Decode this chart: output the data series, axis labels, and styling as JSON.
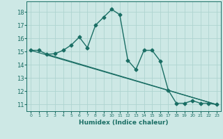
{
  "xlabel": "Humidex (Indice chaleur)",
  "background_color": "#cde8e5",
  "grid_color": "#afd4d0",
  "line_color": "#1a6e64",
  "xlim": [
    -0.5,
    23.5
  ],
  "ylim": [
    10.5,
    18.8
  ],
  "xticks": [
    0,
    1,
    2,
    3,
    4,
    5,
    6,
    7,
    8,
    9,
    10,
    11,
    12,
    13,
    14,
    15,
    16,
    17,
    18,
    19,
    20,
    21,
    22,
    23
  ],
  "yticks": [
    11,
    12,
    13,
    14,
    15,
    16,
    17,
    18
  ],
  "line1_x": [
    0,
    1,
    2,
    3,
    4,
    5,
    6,
    7,
    8,
    9,
    10,
    11,
    12,
    13,
    14,
    15,
    16,
    17,
    18,
    19,
    20,
    21,
    22,
    23
  ],
  "line1_y": [
    15.1,
    15.1,
    14.8,
    14.85,
    15.1,
    15.5,
    16.1,
    15.3,
    17.0,
    17.6,
    18.2,
    17.8,
    14.35,
    13.65,
    15.1,
    15.1,
    14.3,
    12.1,
    11.1,
    11.1,
    11.3,
    11.1,
    11.1,
    11.0
  ],
  "line2_x": [
    0,
    23
  ],
  "line2_y": [
    15.1,
    11.0
  ],
  "line3_x": [
    2,
    23
  ],
  "line3_y": [
    14.8,
    11.0
  ]
}
